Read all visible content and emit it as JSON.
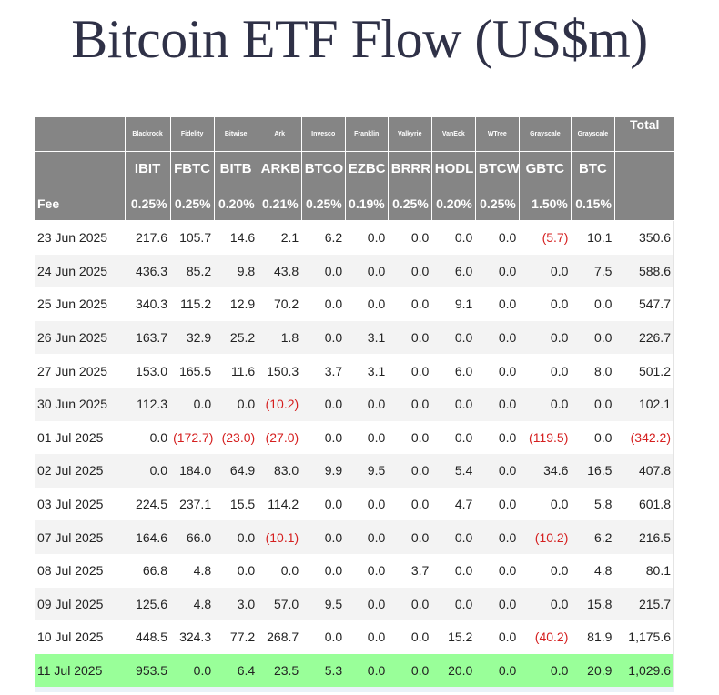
{
  "title": "Bitcoin ETF Flow (US$m)",
  "header": {
    "issuers": [
      "Blackrock",
      "Fidelity",
      "Bitwise",
      "Ark",
      "Invesco",
      "Franklin",
      "Valkyrie",
      "VanEck",
      "WTree",
      "Grayscale",
      "Grayscale"
    ],
    "total_label": "Total",
    "tickers": [
      "IBIT",
      "FBTC",
      "BITB",
      "ARKB",
      "BTCO",
      "EZBC",
      "BRRR",
      "HODL",
      "BTCW",
      "GBTC",
      "BTC"
    ],
    "fee_label": "Fee",
    "fees": [
      "0.25%",
      "0.25%",
      "0.20%",
      "0.21%",
      "0.25%",
      "0.19%",
      "0.25%",
      "0.20%",
      "0.25%",
      "1.50%",
      "0.15%"
    ]
  },
  "rows": [
    {
      "date": "23 Jun 2025",
      "values": [
        "217.6",
        "105.7",
        "14.6",
        "2.1",
        "6.2",
        "0.0",
        "0.0",
        "0.0",
        "0.0",
        "(5.7)",
        "10.1"
      ],
      "total": "350.6"
    },
    {
      "date": "24 Jun 2025",
      "values": [
        "436.3",
        "85.2",
        "9.8",
        "43.8",
        "0.0",
        "0.0",
        "0.0",
        "6.0",
        "0.0",
        "0.0",
        "7.5"
      ],
      "total": "588.6"
    },
    {
      "date": "25 Jun 2025",
      "values": [
        "340.3",
        "115.2",
        "12.9",
        "70.2",
        "0.0",
        "0.0",
        "0.0",
        "9.1",
        "0.0",
        "0.0",
        "0.0"
      ],
      "total": "547.7"
    },
    {
      "date": "26 Jun 2025",
      "values": [
        "163.7",
        "32.9",
        "25.2",
        "1.8",
        "0.0",
        "3.1",
        "0.0",
        "0.0",
        "0.0",
        "0.0",
        "0.0"
      ],
      "total": "226.7"
    },
    {
      "date": "27 Jun 2025",
      "values": [
        "153.0",
        "165.5",
        "11.6",
        "150.3",
        "3.7",
        "3.1",
        "0.0",
        "6.0",
        "0.0",
        "0.0",
        "8.0"
      ],
      "total": "501.2"
    },
    {
      "date": "30 Jun 2025",
      "values": [
        "112.3",
        "0.0",
        "0.0",
        "(10.2)",
        "0.0",
        "0.0",
        "0.0",
        "0.0",
        "0.0",
        "0.0",
        "0.0"
      ],
      "total": "102.1"
    },
    {
      "date": "01 Jul 2025",
      "values": [
        "0.0",
        "(172.7)",
        "(23.0)",
        "(27.0)",
        "0.0",
        "0.0",
        "0.0",
        "0.0",
        "0.0",
        "(119.5)",
        "0.0"
      ],
      "total": "(342.2)"
    },
    {
      "date": "02 Jul 2025",
      "values": [
        "0.0",
        "184.0",
        "64.9",
        "83.0",
        "9.9",
        "9.5",
        "0.0",
        "5.4",
        "0.0",
        "34.6",
        "16.5"
      ],
      "total": "407.8"
    },
    {
      "date": "03 Jul 2025",
      "values": [
        "224.5",
        "237.1",
        "15.5",
        "114.2",
        "0.0",
        "0.0",
        "0.0",
        "4.7",
        "0.0",
        "0.0",
        "5.8"
      ],
      "total": "601.8"
    },
    {
      "date": "07 Jul 2025",
      "values": [
        "164.6",
        "66.0",
        "0.0",
        "(10.1)",
        "0.0",
        "0.0",
        "0.0",
        "0.0",
        "0.0",
        "(10.2)",
        "6.2"
      ],
      "total": "216.5"
    },
    {
      "date": "08 Jul 2025",
      "values": [
        "66.8",
        "4.8",
        "0.0",
        "0.0",
        "0.0",
        "0.0",
        "3.7",
        "0.0",
        "0.0",
        "0.0",
        "4.8"
      ],
      "total": "80.1"
    },
    {
      "date": "09 Jul 2025",
      "values": [
        "125.6",
        "4.8",
        "3.0",
        "57.0",
        "9.5",
        "0.0",
        "0.0",
        "0.0",
        "0.0",
        "0.0",
        "15.8"
      ],
      "total": "215.7"
    },
    {
      "date": "10 Jul 2025",
      "values": [
        "448.5",
        "324.3",
        "77.2",
        "268.7",
        "0.0",
        "0.0",
        "0.0",
        "15.2",
        "0.0",
        "(40.2)",
        "81.9"
      ],
      "total": "1,175.6"
    },
    {
      "date": "11 Jul 2025",
      "values": [
        "953.5",
        "0.0",
        "6.4",
        "23.5",
        "5.3",
        "0.0",
        "0.0",
        "20.0",
        "0.0",
        "0.0",
        "20.9"
      ],
      "total": "1,029.6",
      "highlight": true
    }
  ],
  "colors": {
    "header_bg": "#858585",
    "negative": "#d51f1f",
    "highlight": "#99ff99",
    "title": "#2f3147"
  }
}
